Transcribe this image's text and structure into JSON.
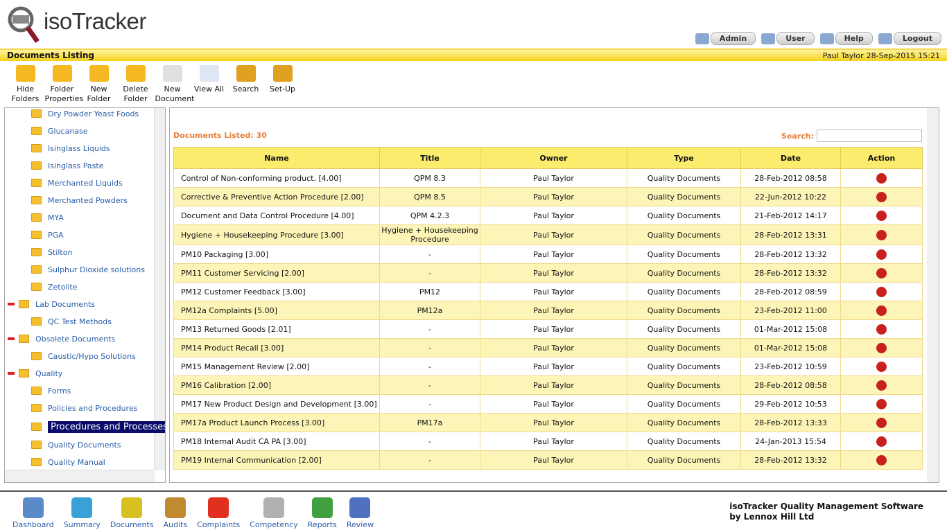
{
  "header": {
    "logo": "isoTracker",
    "nav": [
      "Admin",
      "User",
      "Help",
      "Logout"
    ]
  },
  "titlebar": {
    "title": "Documents Listing",
    "user": "Paul Taylor",
    "date": "28-Sep-2015",
    "time": "15:21"
  },
  "toolbar": [
    "Hide Folders",
    "Folder Properties",
    "New Folder",
    "Delete Folder",
    "New Document",
    "View All",
    "Search",
    "Set-Up"
  ],
  "tree": [
    {
      "children": [
        {
          "label": "Dry Powder Yeast Foods"
        },
        {
          "label": "Glucanase"
        },
        {
          "label": "Isinglass Liquids"
        },
        {
          "label": "Isinglass Paste"
        },
        {
          "label": "Merchanted Liquids"
        },
        {
          "label": "Merchanted Powders"
        },
        {
          "label": "MYA"
        },
        {
          "label": "PGA"
        },
        {
          "label": "Stilton"
        },
        {
          "label": "Sulphur Dioxide solutions"
        },
        {
          "label": "Zetolite"
        }
      ]
    },
    {
      "label": "Lab Documents",
      "children": [
        {
          "label": "QC Test Methods"
        }
      ]
    },
    {
      "label": "Obsolete Documents",
      "children": [
        {
          "label": "Caustic/Hypo Solutions"
        }
      ]
    },
    {
      "label": "Quality",
      "children": [
        {
          "label": "Forms"
        },
        {
          "label": "Policies and Procedures"
        },
        {
          "label": "Procedures and Processes",
          "selected": true
        },
        {
          "label": "Quality Documents"
        },
        {
          "label": "Quality Manual"
        }
      ]
    }
  ],
  "listing": {
    "count_label": "Documents Listed:",
    "count": 30,
    "search_label": "Search:"
  },
  "table": {
    "columns": [
      "Name",
      "Title",
      "Owner",
      "Type",
      "Date",
      "Action"
    ],
    "rows": [
      [
        "Control of Non-conforming product. [4.00]",
        "QPM 8.3",
        "Paul Taylor",
        "Quality Documents",
        "28-Feb-2012 08:58"
      ],
      [
        "Corrective & Preventive Action Procedure [2.00]",
        "QPM 8.5",
        "Paul Taylor",
        "Quality Documents",
        "22-Jun-2012 10:22"
      ],
      [
        "Document and Data Control Procedure [4.00]",
        "QPM 4.2.3",
        "Paul Taylor",
        "Quality Documents",
        "21-Feb-2012 14:17"
      ],
      [
        "Hygiene + Housekeeping Procedure [3.00]",
        "Hygiene + Housekeeping Procedure",
        "Paul Taylor",
        "Quality Documents",
        "28-Feb-2012 13:31"
      ],
      [
        "PM10 Packaging [3.00]",
        "-",
        "Paul Taylor",
        "Quality Documents",
        "28-Feb-2012 13:32"
      ],
      [
        "PM11 Customer Servicing [2.00]",
        "-",
        "Paul Taylor",
        "Quality Documents",
        "28-Feb-2012 13:32"
      ],
      [
        "PM12 Customer Feedback [3.00]",
        "PM12",
        "Paul Taylor",
        "Quality Documents",
        "28-Feb-2012 08:59"
      ],
      [
        "PM12a Complaints [5.00]",
        "PM12a",
        "Paul Taylor",
        "Quality Documents",
        "23-Feb-2012 11:00"
      ],
      [
        "PM13 Returned Goods [2.01]",
        "-",
        "Paul Taylor",
        "Quality Documents",
        "01-Mar-2012 15:08"
      ],
      [
        "PM14 Product Recall [3.00]",
        "-",
        "Paul Taylor",
        "Quality Documents",
        "01-Mar-2012 15:08"
      ],
      [
        "PM15 Management Review [2.00]",
        "-",
        "Paul Taylor",
        "Quality Documents",
        "23-Feb-2012 10:59"
      ],
      [
        "PM16 Calibration [2.00]",
        "-",
        "Paul Taylor",
        "Quality Documents",
        "28-Feb-2012 08:58"
      ],
      [
        "PM17 New Product Design and Development [3.00]",
        "-",
        "Paul Taylor",
        "Quality Documents",
        "29-Feb-2012 10:53"
      ],
      [
        "PM17a Product Launch Process [3.00]",
        "PM17a",
        "Paul Taylor",
        "Quality Documents",
        "28-Feb-2012 13:33"
      ],
      [
        "PM18 Internal Audit CA PA [3.00]",
        "-",
        "Paul Taylor",
        "Quality Documents",
        "24-Jan-2013 15:54"
      ],
      [
        "PM19 Internal Communication [2.00]",
        "-",
        "Paul Taylor",
        "Quality Documents",
        "28-Feb-2012 13:32"
      ]
    ]
  },
  "footer": {
    "nav": [
      "Dashboard",
      "Summary",
      "Documents",
      "Audits",
      "Complaints",
      "Competency",
      "Reports",
      "Review"
    ],
    "company": [
      "isoTracker Quality Management Software",
      "by Lennox Hill Ltd"
    ]
  }
}
